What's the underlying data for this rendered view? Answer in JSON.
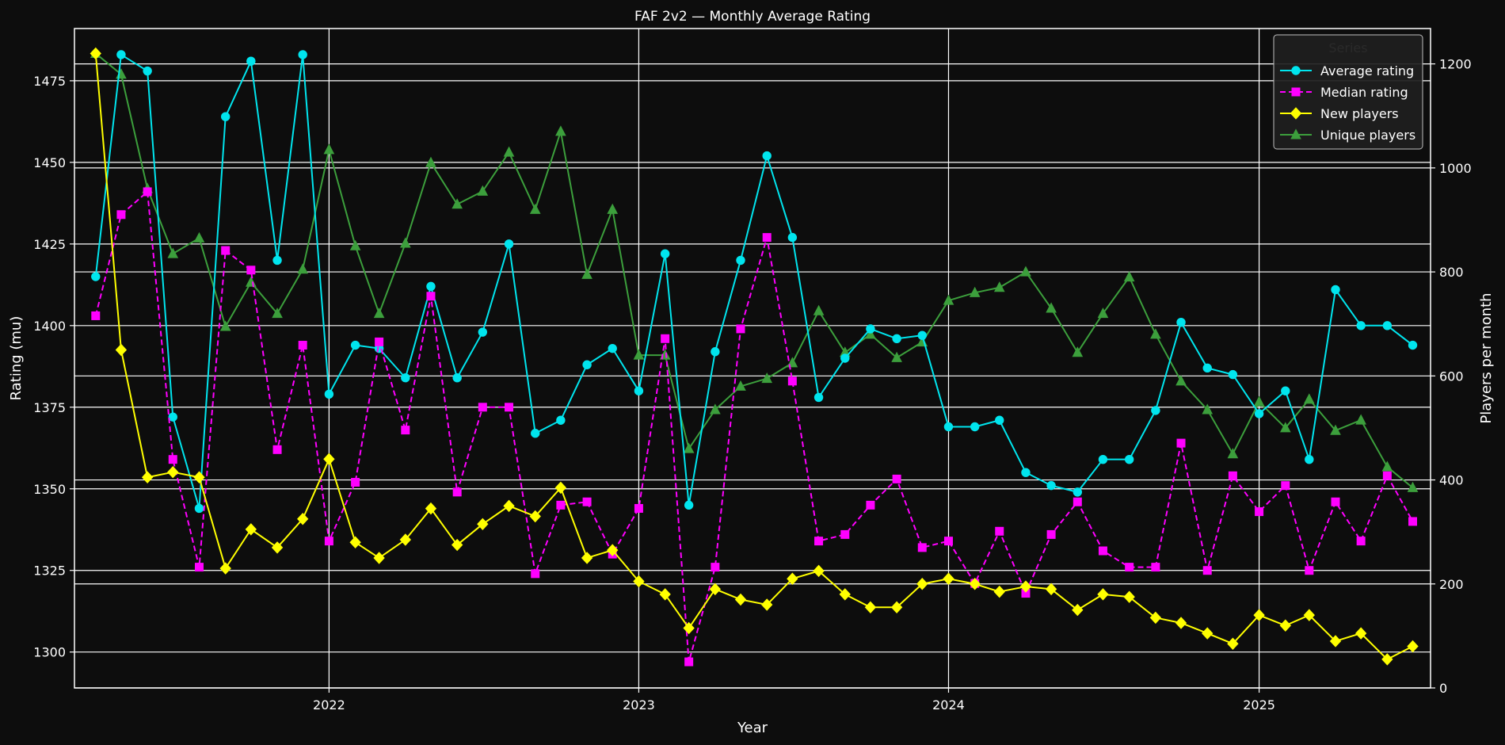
{
  "chart_data": {
    "type": "line",
    "title": "FAF 2v2 — Monthly Average Rating",
    "xlabel": "Year",
    "ylabel_left": "Rating (mu)",
    "ylabel_right": "Players per month",
    "xlim": [
      "2021-03-07",
      "2025-07-22"
    ],
    "ylim_left": [
      1289,
      1491
    ],
    "ylim_right": [
      0,
      1268
    ],
    "x_ticks": [
      "2022",
      "2023",
      "2024",
      "2025"
    ],
    "y_ticks_left": [
      1300,
      1325,
      1350,
      1375,
      1400,
      1425,
      1450,
      1475
    ],
    "y_ticks_right": [
      0,
      200,
      400,
      600,
      800,
      1000,
      1200
    ],
    "grid": true,
    "legend_title": "Series",
    "legend_position": "top-right",
    "months": [
      "2021-04",
      "2021-05",
      "2021-06",
      "2021-07",
      "2021-08",
      "2021-09",
      "2021-10",
      "2021-11",
      "2021-12",
      "2022-01",
      "2022-02",
      "2022-03",
      "2022-04",
      "2022-05",
      "2022-06",
      "2022-07",
      "2022-08",
      "2022-09",
      "2022-10",
      "2022-11",
      "2022-12",
      "2023-01",
      "2023-02",
      "2023-03",
      "2023-04",
      "2023-05",
      "2023-06",
      "2023-07",
      "2023-08",
      "2023-09",
      "2023-10",
      "2023-11",
      "2023-12",
      "2024-01",
      "2024-02",
      "2024-03",
      "2024-04",
      "2024-05",
      "2024-06",
      "2024-07",
      "2024-08",
      "2024-09",
      "2024-10",
      "2024-11",
      "2024-12",
      "2025-01",
      "2025-02",
      "2025-03",
      "2025-04",
      "2025-05",
      "2025-06",
      "2025-07"
    ],
    "series": [
      {
        "name": "Average rating",
        "axis": "left",
        "color": "#00e5ee",
        "marker": "circle",
        "dash": false,
        "values": [
          1415,
          1483,
          1478,
          1372,
          1344,
          1464,
          1481,
          1420,
          1483,
          1379,
          1394,
          1393,
          1384,
          1412,
          1384,
          1398,
          1425,
          1367,
          1371,
          1388,
          1393,
          1380,
          1422,
          1345,
          1392,
          1420,
          1452,
          1427,
          1378,
          1390,
          1399,
          1396,
          1397,
          1369,
          1369,
          1371,
          1355,
          1351,
          1349,
          1359,
          1359,
          1374,
          1401,
          1387,
          1385,
          1373,
          1380,
          1359,
          1411,
          1400,
          1400,
          1394
        ]
      },
      {
        "name": "Median rating",
        "axis": "left",
        "color": "#ff00ff",
        "marker": "square",
        "dash": true,
        "values": [
          1403,
          1434,
          1441,
          1359,
          1326,
          1423,
          1417,
          1362,
          1394,
          1334,
          1352,
          1395,
          1368,
          1409,
          1349,
          1375,
          1375,
          1324,
          1345,
          1346,
          1330,
          1344,
          1396,
          1297,
          1326,
          1399,
          1427,
          1383,
          1334,
          1336,
          1345,
          1353,
          1332,
          1334,
          1321,
          1337,
          1318,
          1336,
          1346,
          1331,
          1326,
          1326,
          1364,
          1325,
          1354,
          1343,
          1351,
          1325,
          1346,
          1334,
          1354,
          1340
        ]
      },
      {
        "name": "New players",
        "axis": "right",
        "color": "#ffff00",
        "marker": "diamond",
        "dash": false,
        "values": [
          1220,
          650,
          405,
          415,
          405,
          230,
          305,
          270,
          325,
          440,
          280,
          250,
          285,
          345,
          275,
          315,
          350,
          330,
          385,
          250,
          265,
          205,
          180,
          115,
          190,
          170,
          160,
          210,
          225,
          180,
          155,
          155,
          200,
          210,
          200,
          185,
          195,
          190,
          150,
          180,
          175,
          135,
          125,
          105,
          85,
          140,
          120,
          140,
          90,
          105,
          55,
          80
        ]
      },
      {
        "name": "Unique players",
        "axis": "right",
        "color": "#3c9f3c",
        "marker": "triangle",
        "dash": false,
        "values": [
          1220,
          1180,
          960,
          835,
          865,
          695,
          780,
          720,
          805,
          1035,
          850,
          720,
          855,
          1010,
          930,
          955,
          1030,
          920,
          1070,
          795,
          920,
          640,
          640,
          460,
          535,
          580,
          595,
          625,
          725,
          645,
          680,
          635,
          665,
          745,
          760,
          770,
          800,
          730,
          645,
          720,
          790,
          680,
          590,
          535,
          450,
          550,
          500,
          555,
          495,
          515,
          425,
          385
        ]
      }
    ]
  }
}
